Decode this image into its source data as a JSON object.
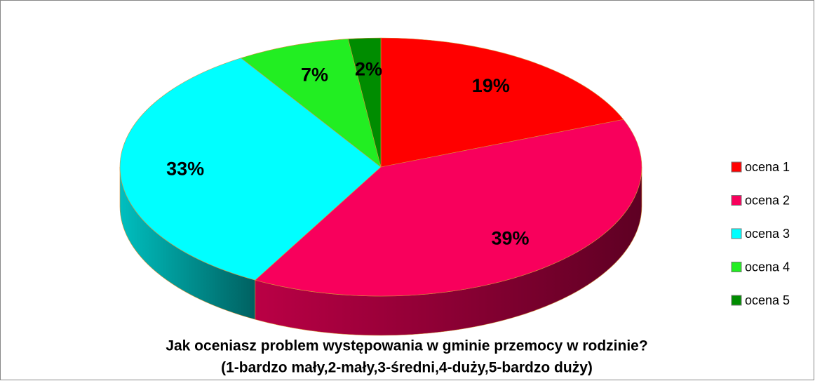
{
  "chart_data": {
    "type": "pie3d",
    "title": "Jak oceniasz problem występowania w gminie przemocy w rodzinie?",
    "subtitle": "(1-bardzo mały,2-mały,3-średni,4-duży,5-bardzo duży)",
    "categories": [
      "ocena 1",
      "ocena 2",
      "ocena 3",
      "ocena 4",
      "ocena 5"
    ],
    "values": [
      19,
      39,
      33,
      7,
      2
    ],
    "value_labels": [
      "19%",
      "39%",
      "33%",
      "7%",
      "2%"
    ],
    "colors": [
      "#ff0000",
      "#f8005c",
      "#00ffff",
      "#22ee22",
      "#008c00"
    ],
    "legend": "right"
  }
}
